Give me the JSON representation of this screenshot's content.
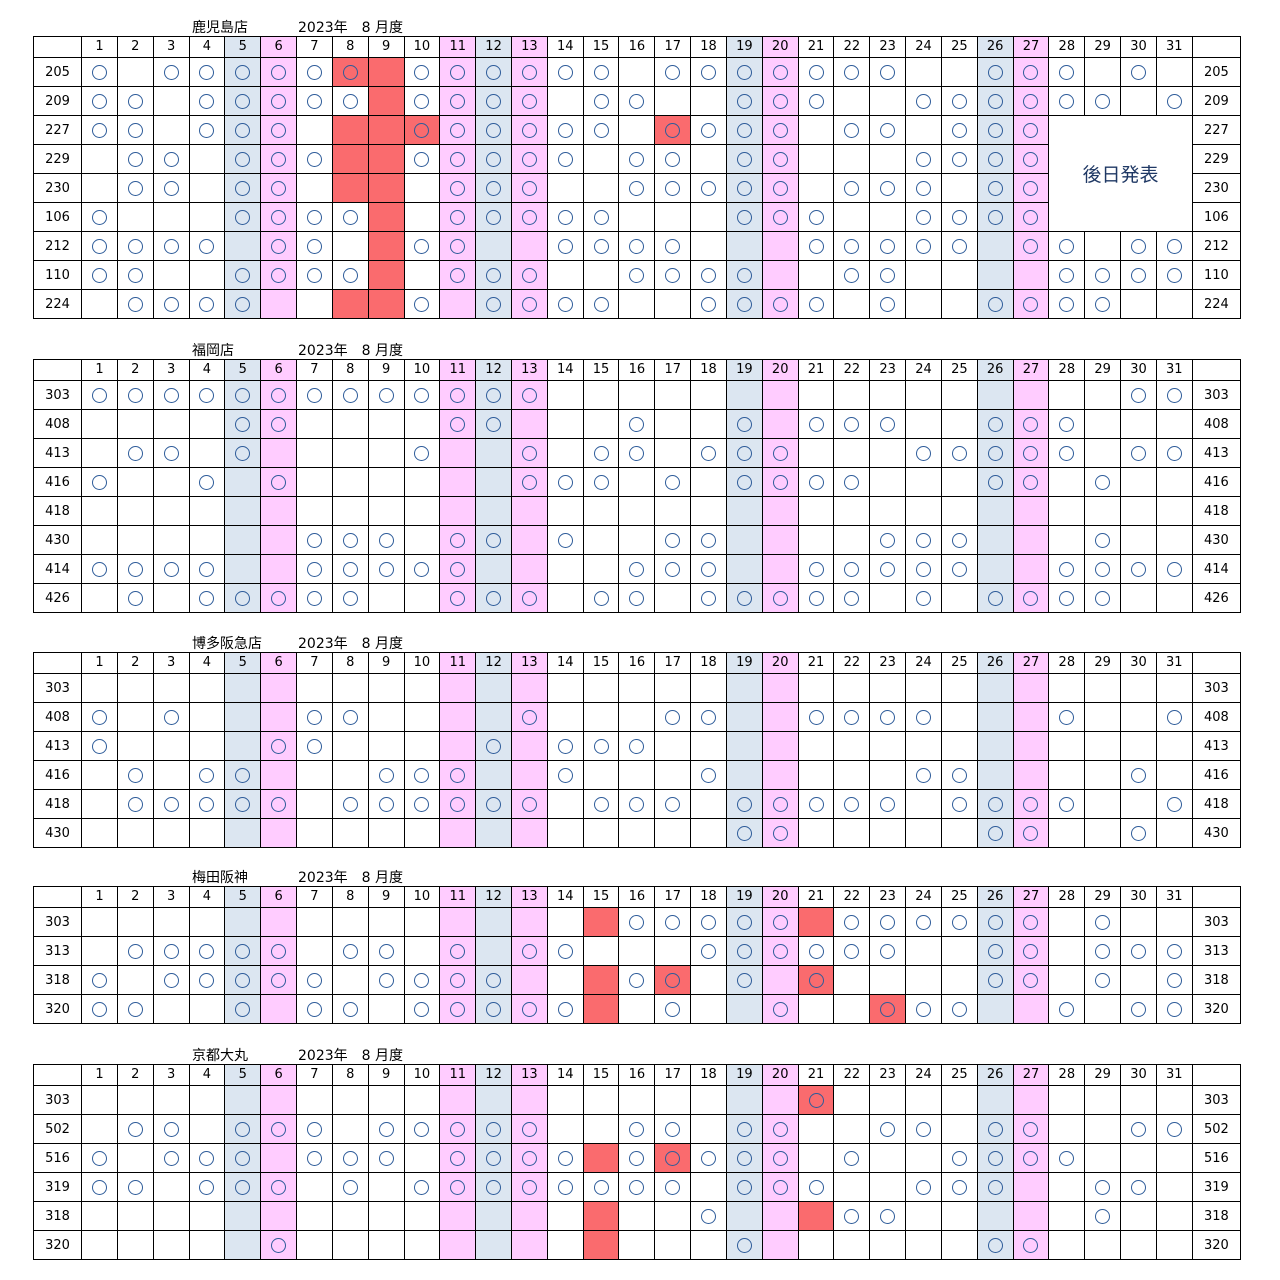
{
  "period": "2023年　8 月度",
  "mark": "○",
  "colors": {
    "sat_blue": "#dce6f1",
    "sun_pink": "#ffccff",
    "closed_red": "#fa6b6e",
    "circle": "#2e5c9a"
  },
  "day_labels": [
    "1",
    "2",
    "3",
    "4",
    "5",
    "6",
    "7",
    "8",
    "9",
    "10",
    "11",
    "12",
    "13",
    "14",
    "15",
    "16",
    "17",
    "18",
    "19",
    "20",
    "21",
    "22",
    "23",
    "24",
    "25",
    "26",
    "27",
    "28",
    "29",
    "30",
    "31"
  ],
  "weekend_blue_days": [
    5,
    12,
    19,
    26
  ],
  "weekend_pink_days": [
    6,
    11,
    13,
    20,
    27
  ],
  "stores": [
    {
      "name": "鹿児島店",
      "note": {
        "text": "後日発表",
        "rows": [
          2,
          5
        ],
        "days": [
          28,
          31
        ]
      },
      "rows": [
        {
          "label": "205",
          "marks": [
            1,
            3,
            4,
            5,
            6,
            7,
            8,
            10,
            11,
            12,
            13,
            14,
            15,
            17,
            18,
            19,
            20,
            21,
            22,
            23,
            26,
            27,
            28,
            30
          ],
          "closed": [
            8,
            9
          ]
        },
        {
          "label": "209",
          "marks": [
            1,
            2,
            4,
            5,
            6,
            7,
            8,
            10,
            11,
            12,
            13,
            15,
            16,
            19,
            20,
            21,
            24,
            25,
            26,
            27,
            28,
            29,
            31
          ],
          "closed": [
            9
          ]
        },
        {
          "label": "227",
          "marks": [
            1,
            2,
            4,
            5,
            6,
            10,
            11,
            12,
            13,
            14,
            15,
            17,
            18,
            19,
            20,
            22,
            23,
            25,
            26,
            27
          ],
          "closed": [
            8,
            9,
            10,
            17
          ]
        },
        {
          "label": "229",
          "marks": [
            2,
            3,
            5,
            6,
            7,
            10,
            11,
            12,
            13,
            14,
            16,
            17,
            19,
            20,
            24,
            25,
            26,
            27
          ],
          "closed": [
            8,
            9
          ]
        },
        {
          "label": "230",
          "marks": [
            2,
            3,
            5,
            6,
            11,
            12,
            13,
            16,
            17,
            18,
            19,
            20,
            22,
            23,
            24,
            26,
            27
          ],
          "closed": [
            8,
            9
          ]
        },
        {
          "label": "106",
          "marks": [
            1,
            5,
            6,
            7,
            8,
            11,
            12,
            13,
            14,
            15,
            19,
            20,
            21,
            24,
            25,
            26,
            27,
            29,
            30
          ],
          "closed": [
            9
          ]
        },
        {
          "label": "212",
          "marks": [
            1,
            2,
            3,
            4,
            6,
            7,
            10,
            11,
            14,
            15,
            16,
            17,
            21,
            22,
            23,
            24,
            25,
            27,
            28,
            30,
            31
          ],
          "closed": [
            9
          ]
        },
        {
          "label": "110",
          "marks": [
            1,
            2,
            5,
            6,
            7,
            8,
            11,
            12,
            13,
            16,
            17,
            18,
            19,
            22,
            23,
            28,
            29,
            30,
            31
          ],
          "closed": [
            9
          ]
        },
        {
          "label": "224",
          "marks": [
            2,
            3,
            4,
            5,
            10,
            12,
            13,
            14,
            15,
            18,
            19,
            20,
            21,
            23,
            26,
            27,
            28,
            29
          ],
          "closed": [
            8,
            9
          ]
        }
      ]
    },
    {
      "name": "福岡店",
      "rows": [
        {
          "label": "303",
          "marks": [
            1,
            2,
            3,
            4,
            5,
            6,
            7,
            8,
            9,
            10,
            11,
            12,
            13,
            30,
            31
          ],
          "closed": []
        },
        {
          "label": "408",
          "marks": [
            5,
            6,
            11,
            12,
            16,
            19,
            21,
            22,
            23,
            26,
            27,
            28
          ],
          "closed": []
        },
        {
          "label": "413",
          "marks": [
            2,
            3,
            5,
            10,
            13,
            15,
            16,
            18,
            19,
            20,
            24,
            25,
            26,
            27,
            28,
            30,
            31
          ],
          "closed": []
        },
        {
          "label": "416",
          "marks": [
            1,
            4,
            6,
            13,
            14,
            15,
            17,
            19,
            20,
            21,
            22,
            26,
            27,
            29
          ],
          "closed": []
        },
        {
          "label": "418",
          "marks": [],
          "closed": []
        },
        {
          "label": "430",
          "marks": [
            7,
            8,
            9,
            11,
            12,
            14,
            17,
            18,
            23,
            24,
            25,
            29
          ],
          "closed": []
        },
        {
          "label": "414",
          "marks": [
            1,
            2,
            3,
            4,
            7,
            8,
            9,
            10,
            11,
            16,
            17,
            18,
            21,
            22,
            23,
            24,
            25,
            28,
            29,
            30,
            31
          ],
          "closed": []
        },
        {
          "label": "426",
          "marks": [
            2,
            4,
            5,
            6,
            7,
            8,
            11,
            12,
            13,
            15,
            16,
            18,
            19,
            20,
            21,
            22,
            24,
            26,
            27,
            28,
            29
          ],
          "closed": []
        }
      ]
    },
    {
      "name": "博多阪急店",
      "rows": [
        {
          "label": "303",
          "marks": [],
          "closed": []
        },
        {
          "label": "408",
          "marks": [
            1,
            3,
            7,
            8,
            13,
            17,
            18,
            21,
            22,
            23,
            24,
            28,
            31
          ],
          "closed": []
        },
        {
          "label": "413",
          "marks": [
            1,
            6,
            7,
            12,
            14,
            15,
            16
          ],
          "closed": []
        },
        {
          "label": "416",
          "marks": [
            2,
            4,
            5,
            9,
            10,
            11,
            14,
            18,
            24,
            25,
            30
          ],
          "closed": []
        },
        {
          "label": "418",
          "marks": [
            2,
            3,
            4,
            5,
            6,
            8,
            9,
            10,
            11,
            12,
            13,
            15,
            16,
            17,
            19,
            20,
            21,
            22,
            23,
            25,
            26,
            27,
            28,
            31
          ],
          "closed": []
        },
        {
          "label": "430",
          "marks": [
            19,
            20,
            26,
            27,
            30
          ],
          "closed": []
        }
      ]
    },
    {
      "name": "梅田阪神",
      "rows": [
        {
          "label": "303",
          "marks": [
            16,
            17,
            18,
            19,
            20,
            22,
            23,
            24,
            25,
            26,
            27,
            29
          ],
          "closed": [
            15,
            21
          ]
        },
        {
          "label": "313",
          "marks": [
            2,
            3,
            4,
            5,
            6,
            8,
            9,
            11,
            13,
            14,
            18,
            19,
            20,
            21,
            22,
            23,
            26,
            27,
            29,
            30,
            31
          ],
          "closed": []
        },
        {
          "label": "318",
          "marks": [
            1,
            3,
            4,
            5,
            6,
            7,
            9,
            10,
            11,
            12,
            16,
            17,
            19,
            21,
            26,
            27,
            29,
            31
          ],
          "closed": [
            15,
            17,
            21
          ]
        },
        {
          "label": "320",
          "marks": [
            1,
            2,
            5,
            7,
            8,
            10,
            11,
            12,
            13,
            14,
            17,
            20,
            23,
            24,
            25,
            28,
            30,
            31
          ],
          "closed": [
            15,
            23
          ]
        }
      ]
    },
    {
      "name": "京都大丸",
      "rows": [
        {
          "label": "303",
          "marks": [
            21
          ],
          "closed": [
            21
          ]
        },
        {
          "label": "502",
          "marks": [
            2,
            3,
            5,
            6,
            7,
            9,
            10,
            11,
            12,
            13,
            16,
            17,
            19,
            20,
            23,
            24,
            26,
            27,
            30,
            31
          ],
          "closed": []
        },
        {
          "label": "516",
          "marks": [
            1,
            3,
            4,
            5,
            7,
            8,
            9,
            11,
            12,
            13,
            14,
            16,
            17,
            18,
            19,
            20,
            22,
            25,
            26,
            27,
            28
          ],
          "closed": [
            15,
            17
          ]
        },
        {
          "label": "319",
          "marks": [
            1,
            2,
            4,
            5,
            6,
            8,
            10,
            11,
            12,
            13,
            14,
            15,
            16,
            17,
            19,
            20,
            21,
            24,
            25,
            26,
            29,
            30
          ],
          "closed": []
        },
        {
          "label": "318",
          "marks": [
            18,
            22,
            23,
            29
          ],
          "closed": [
            15,
            21
          ]
        },
        {
          "label": "320",
          "marks": [
            6,
            19,
            26,
            27
          ],
          "closed": [
            15
          ]
        }
      ]
    }
  ]
}
